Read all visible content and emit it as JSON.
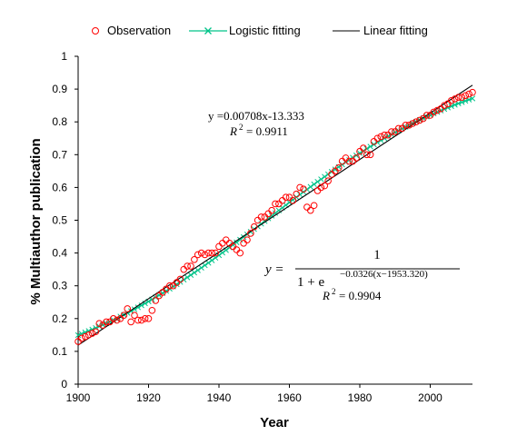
{
  "chart_data": {
    "type": "scatter",
    "xlabel": "Year",
    "ylabel": "% Multiauthor publication",
    "xlim": [
      1900,
      2012
    ],
    "ylim": [
      0,
      1
    ],
    "xticks": [
      "1900",
      "1920",
      "1940",
      "1960",
      "1980",
      "2000"
    ],
    "yticks": [
      "0",
      "0.1",
      "0.2",
      "0.3",
      "0.4",
      "0.5",
      "0.6",
      "0.7",
      "0.8",
      "0.9",
      "1"
    ],
    "grid": false,
    "legend_position": "top",
    "colors": {
      "observation": "#ff0000",
      "logistic": "#00c389",
      "linear": "#000000"
    },
    "series": [
      {
        "name": "Observation",
        "marker": "open-circle",
        "x": [
          1900,
          1901,
          1902,
          1903,
          1904,
          1905,
          1906,
          1907,
          1908,
          1909,
          1910,
          1911,
          1912,
          1913,
          1914,
          1915,
          1916,
          1917,
          1918,
          1919,
          1920,
          1921,
          1922,
          1923,
          1924,
          1925,
          1926,
          1927,
          1928,
          1929,
          1930,
          1931,
          1932,
          1933,
          1934,
          1935,
          1936,
          1937,
          1938,
          1939,
          1940,
          1941,
          1942,
          1943,
          1944,
          1945,
          1946,
          1947,
          1948,
          1949,
          1950,
          1951,
          1952,
          1953,
          1954,
          1955,
          1956,
          1957,
          1958,
          1959,
          1960,
          1961,
          1962,
          1963,
          1964,
          1965,
          1966,
          1967,
          1968,
          1969,
          1970,
          1971,
          1972,
          1973,
          1974,
          1975,
          1976,
          1977,
          1978,
          1979,
          1980,
          1981,
          1982,
          1983,
          1984,
          1985,
          1986,
          1987,
          1988,
          1989,
          1990,
          1991,
          1992,
          1993,
          1994,
          1995,
          1996,
          1997,
          1998,
          1999,
          2000,
          2001,
          2002,
          2003,
          2004,
          2005,
          2006,
          2007,
          2008,
          2009,
          2010,
          2011,
          2012
        ],
        "y": [
          0.13,
          0.14,
          0.145,
          0.15,
          0.155,
          0.16,
          0.185,
          0.18,
          0.19,
          0.19,
          0.2,
          0.195,
          0.2,
          0.21,
          0.23,
          0.19,
          0.21,
          0.195,
          0.195,
          0.2,
          0.2,
          0.225,
          0.255,
          0.27,
          0.28,
          0.29,
          0.3,
          0.3,
          0.31,
          0.32,
          0.35,
          0.36,
          0.36,
          0.38,
          0.395,
          0.4,
          0.395,
          0.4,
          0.4,
          0.4,
          0.42,
          0.43,
          0.44,
          0.43,
          0.42,
          0.41,
          0.4,
          0.43,
          0.44,
          0.46,
          0.48,
          0.5,
          0.51,
          0.51,
          0.52,
          0.53,
          0.55,
          0.55,
          0.56,
          0.57,
          0.57,
          0.56,
          0.58,
          0.6,
          0.595,
          0.54,
          0.53,
          0.545,
          0.59,
          0.6,
          0.605,
          0.62,
          0.64,
          0.65,
          0.66,
          0.68,
          0.69,
          0.68,
          0.68,
          0.69,
          0.71,
          0.72,
          0.7,
          0.7,
          0.74,
          0.75,
          0.755,
          0.76,
          0.76,
          0.77,
          0.77,
          0.78,
          0.78,
          0.79,
          0.79,
          0.795,
          0.8,
          0.805,
          0.81,
          0.82,
          0.82,
          0.83,
          0.835,
          0.84,
          0.85,
          0.855,
          0.865,
          0.87,
          0.875,
          0.875,
          0.88,
          0.885,
          0.89
        ]
      },
      {
        "name": "Logistic fitting",
        "marker": "x",
        "model": "logistic",
        "params": {
          "k": 0.0326,
          "x0": 1953.32
        }
      },
      {
        "name": "Linear fitting",
        "marker": "none",
        "model": "linear",
        "params": {
          "slope": 0.00708,
          "intercept": -13.333
        }
      }
    ],
    "annotations": {
      "linear_eq": "y =0.00708x-13.333",
      "linear_r2": "= 0.9911",
      "logistic_eq_lhs": "y =",
      "logistic_eq_numerator": "1",
      "logistic_eq_denominator_base": "1 + e",
      "logistic_eq_exponent": "−0.0326(x−1953.320)",
      "logistic_r2": "= 0.9904"
    }
  }
}
